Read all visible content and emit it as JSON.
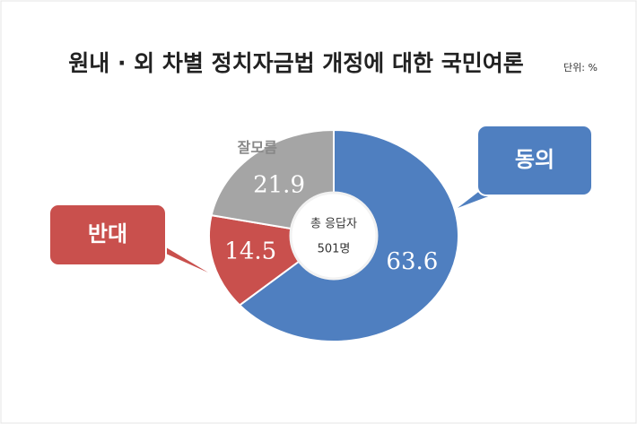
{
  "chart_data": {
    "type": "pie",
    "title": "원내 · 외 차별 정치자금법 개정에 대한 국민여론",
    "unit": "단위: %",
    "center_text": [
      "총 응답자",
      "501명"
    ],
    "categories": [
      "동의",
      "반대",
      "잘모름"
    ],
    "values": [
      63.6,
      14.5,
      21.9
    ],
    "colors": [
      "#4f7fc0",
      "#c9504d",
      "#a5a5a5"
    ]
  }
}
